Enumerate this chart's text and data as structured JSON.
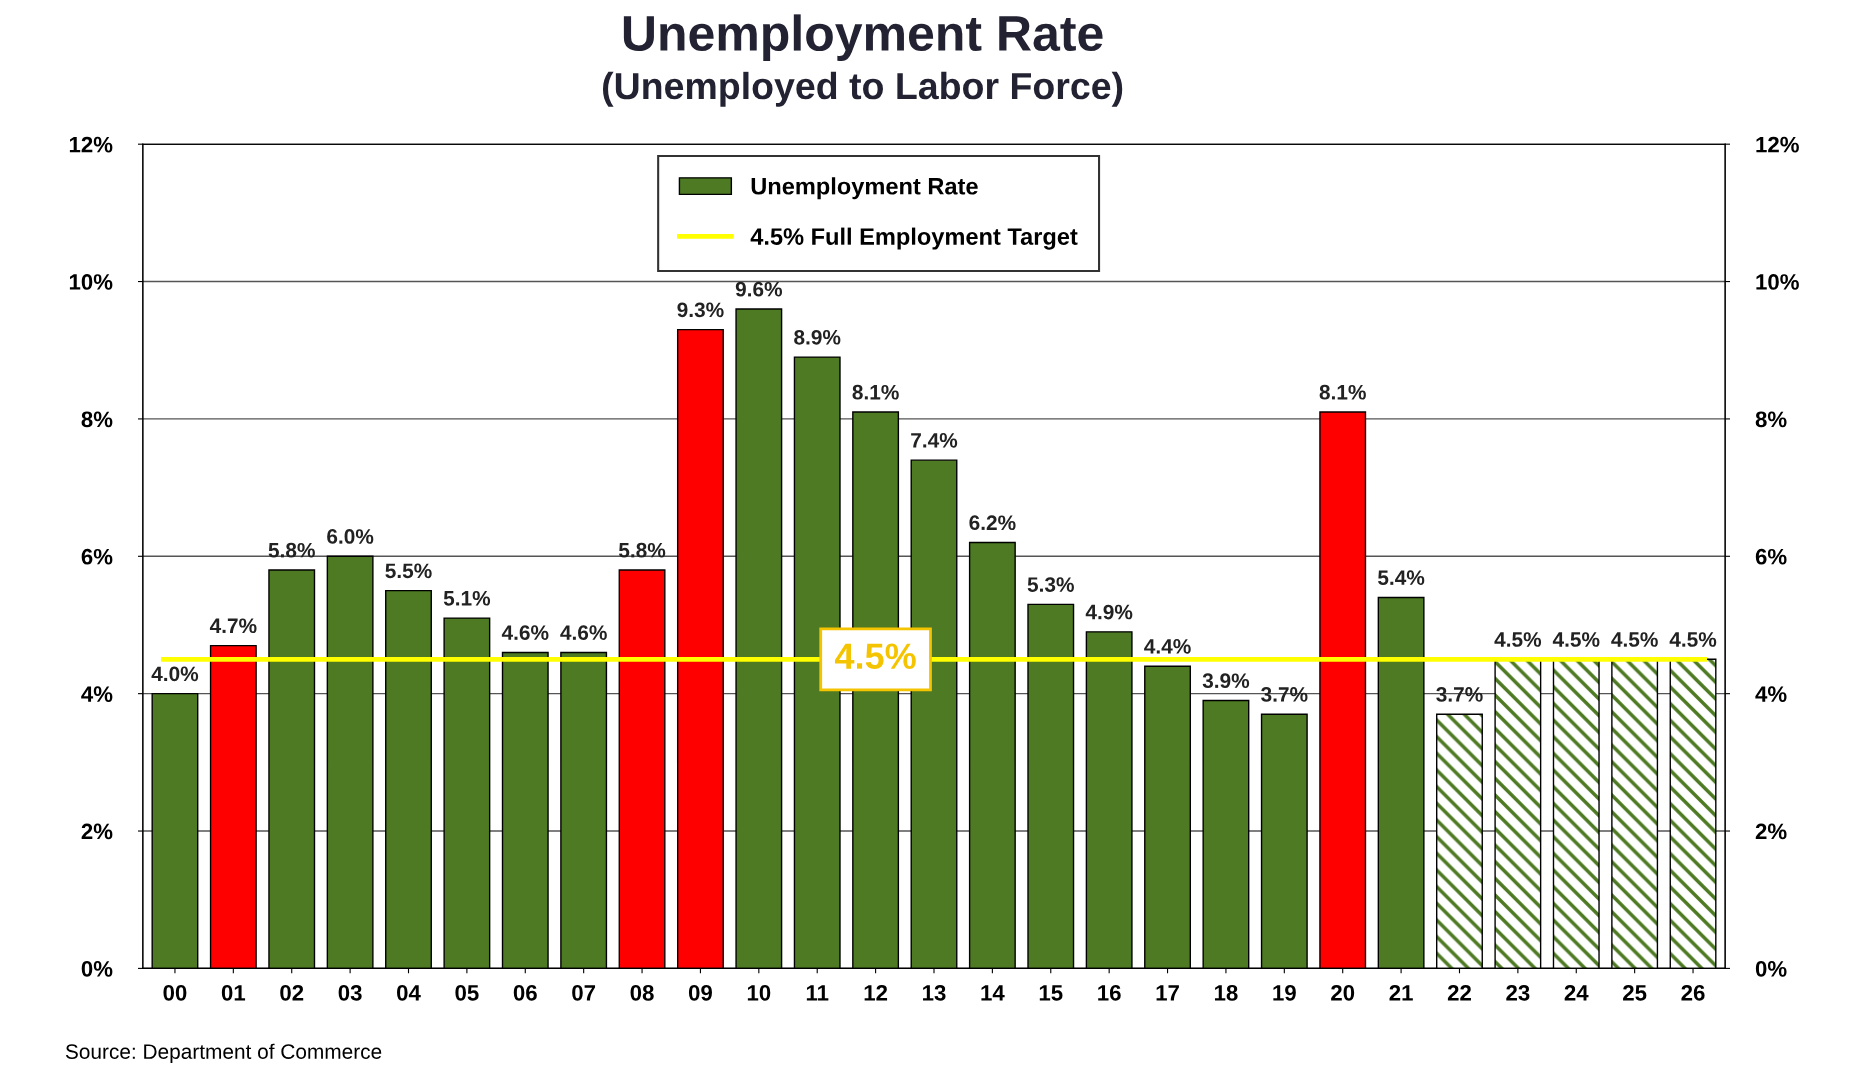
{
  "chart_data": {
    "type": "bar",
    "title": "Unemployment Rate",
    "subtitle": "(Unemployed to Labor Force)",
    "categories": [
      "00",
      "01",
      "02",
      "03",
      "04",
      "05",
      "06",
      "07",
      "08",
      "09",
      "10",
      "11",
      "12",
      "13",
      "14",
      "15",
      "16",
      "17",
      "18",
      "19",
      "20",
      "21",
      "22",
      "23",
      "24",
      "25",
      "26"
    ],
    "series": [
      {
        "name": "Unemployment Rate",
        "color": "#4d7a22",
        "colors": [
          "#4d7a22",
          "#ff0000",
          "#4d7a22",
          "#4d7a22",
          "#4d7a22",
          "#4d7a22",
          "#4d7a22",
          "#4d7a22",
          "#ff0000",
          "#ff0000",
          "#4d7a22",
          "#4d7a22",
          "#4d7a22",
          "#4d7a22",
          "#4d7a22",
          "#4d7a22",
          "#4d7a22",
          "#4d7a22",
          "#4d7a22",
          "#4d7a22",
          "#ff0000",
          "#4d7a22",
          null,
          null,
          null,
          null,
          null
        ],
        "values": [
          4.0,
          4.7,
          5.8,
          6.0,
          5.5,
          5.1,
          4.6,
          4.6,
          5.8,
          9.3,
          9.6,
          8.9,
          8.1,
          7.4,
          6.2,
          5.3,
          4.9,
          4.4,
          3.9,
          3.7,
          8.1,
          5.4,
          null,
          null,
          null,
          null,
          null
        ],
        "value_labels": [
          "4.0%",
          "4.7%",
          "5.8%",
          "6.0%",
          "5.5%",
          "5.1%",
          "4.6%",
          "4.6%",
          "5.8%",
          "9.3%",
          "9.6%",
          "8.9%",
          "8.1%",
          "7.4%",
          "6.2%",
          "5.3%",
          "4.9%",
          "4.4%",
          "3.9%",
          "3.7%",
          "8.1%",
          "5.4%",
          null,
          null,
          null,
          null,
          null
        ]
      },
      {
        "color": "#4d7a22",
        "values": [
          null,
          null,
          null,
          null,
          null,
          null,
          null,
          null,
          null,
          null,
          null,
          null,
          null,
          null,
          null,
          null,
          null,
          null,
          null,
          null,
          null,
          null,
          3.7,
          4.5,
          4.5,
          4.5,
          4.5
        ],
        "value_labels": [
          null,
          null,
          null,
          null,
          null,
          null,
          null,
          null,
          null,
          null,
          null,
          null,
          null,
          null,
          null,
          null,
          null,
          null,
          null,
          null,
          null,
          null,
          "3.7%",
          "4.5%",
          "4.5%",
          "4.5%",
          "4.5%"
        ]
      }
    ],
    "ylim": [
      0,
      12
    ],
    "yticks": [
      {
        "value": 0,
        "label": "0%"
      },
      {
        "value": 2,
        "label": "2%"
      },
      {
        "value": 4,
        "label": "4%"
      },
      {
        "value": 6,
        "label": "6%"
      },
      {
        "value": 8,
        "label": "8%"
      },
      {
        "value": 10,
        "label": "10%"
      },
      {
        "value": 12,
        "label": "12%"
      }
    ],
    "y2lim": [
      0,
      12
    ],
    "y2ticks": [
      {
        "value": 0,
        "label": "0%"
      },
      {
        "value": 2,
        "label": "2%"
      },
      {
        "value": 4,
        "label": "4%"
      },
      {
        "value": 6,
        "label": "6%"
      },
      {
        "value": 8,
        "label": "8%"
      },
      {
        "value": 10,
        "label": "10%"
      },
      {
        "value": 12,
        "label": "12%"
      }
    ],
    "ref_lines": [
      {
        "axis": "y",
        "value": 4.5,
        "label": "4.5% Full Employment Target",
        "color": "#ffff00"
      }
    ],
    "annotations": [
      {
        "text": "4.5%",
        "x": "12",
        "y": 4.5
      },
      "Source: Department of Commerce"
    ],
    "grid": "y",
    "legend": "top"
  }
}
